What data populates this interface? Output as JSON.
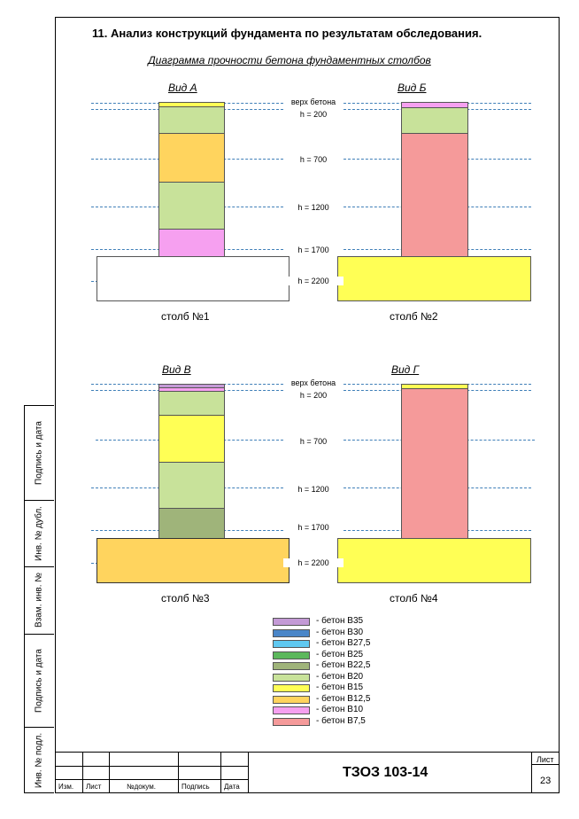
{
  "title": "11.  Анализ конструкций фундамента по результатам обследования.",
  "subtitle": "Диаграмма прочности бетона фундаментных столбов",
  "level_labels": {
    "top": "верх бетона",
    "h200": "h = 200",
    "h700": "h = 700",
    "h1200": "h = 1200",
    "h1700": "h = 1700",
    "h2200": "h = 2200"
  },
  "views": [
    {
      "title": "Вид  А",
      "column": "столб №1"
    },
    {
      "title": "Вид  Б",
      "column": "столб №2"
    },
    {
      "title": "Вид  В",
      "column": "столб №3"
    },
    {
      "title": "Вид  Г",
      "column": "столб №4"
    }
  ],
  "colors": {
    "B35": "#c49ad6",
    "B30": "#4a86c8",
    "B27_5": "#5fc8f0",
    "B25": "#5cb85c",
    "B22_5": "#9fb47a",
    "B20": "#c8e29a",
    "B15": "#ffff55",
    "B12_5": "#ffd45e",
    "B10": "#f6a0f0",
    "B7_5": "#f59a9a",
    "empty": "#ffffff"
  },
  "legend": [
    {
      "label": "-  бетон В35",
      "color": "#c49ad6"
    },
    {
      "label": "-  бетон В30",
      "color": "#4a86c8"
    },
    {
      "label": "-  бетон В27,5",
      "color": "#5fc8f0"
    },
    {
      "label": "-  бетон В25",
      "color": "#5cb85c"
    },
    {
      "label": "-  бетон В22,5",
      "color": "#9fb47a"
    },
    {
      "label": "-  бетон В20",
      "color": "#c8e29a"
    },
    {
      "label": "-  бетон В15",
      "color": "#ffff55"
    },
    {
      "label": "-  бетон В12,5",
      "color": "#ffd45e"
    },
    {
      "label": "-  бетон В10",
      "color": "#f6a0f0"
    },
    {
      "label": "-  бетон В7,5",
      "color": "#f59a9a"
    }
  ],
  "sidebar": [
    "Подпись и дата",
    "Инв. № дубл.",
    "Взам. инв. №",
    "Подпись и дата",
    "Инв. № подл."
  ],
  "title_block": {
    "code": "ТЗОЗ 103-14",
    "sheet_label": "Лист",
    "sheet_number": "23",
    "cols": [
      "Изм.",
      "Лист",
      "№докум.",
      "Подпись",
      "Дата"
    ]
  }
}
